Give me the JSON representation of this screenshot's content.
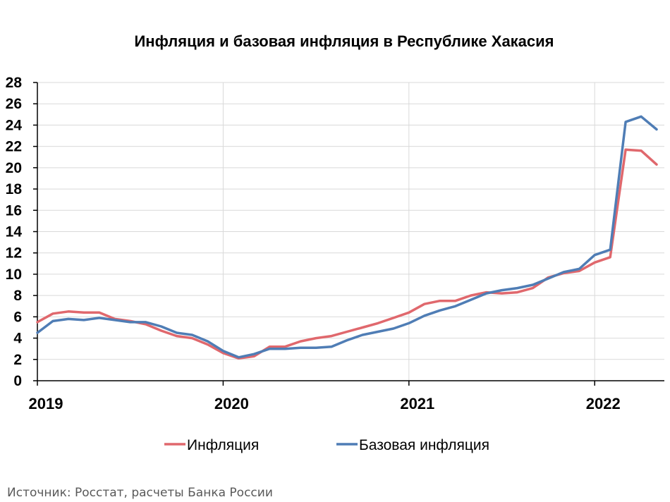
{
  "chart_data": {
    "type": "line",
    "title": "Инфляция и базовая инфляция в Республике Хакасия",
    "xlabel": "",
    "ylabel": "",
    "ylim": [
      0,
      28
    ],
    "yticks": [
      "0",
      "2",
      "4",
      "6",
      "8",
      "10",
      "12",
      "14",
      "16",
      "18",
      "20",
      "22",
      "24",
      "26",
      "28"
    ],
    "xticks": [
      "2019",
      "2020",
      "2021",
      "2022"
    ],
    "x": [
      "2019-01",
      "2019-02",
      "2019-03",
      "2019-04",
      "2019-05",
      "2019-06",
      "2019-07",
      "2019-08",
      "2019-09",
      "2019-10",
      "2019-11",
      "2019-12",
      "2020-01",
      "2020-02",
      "2020-03",
      "2020-04",
      "2020-05",
      "2020-06",
      "2020-07",
      "2020-08",
      "2020-09",
      "2020-10",
      "2020-11",
      "2020-12",
      "2021-01",
      "2021-02",
      "2021-03",
      "2021-04",
      "2021-05",
      "2021-06",
      "2021-07",
      "2021-08",
      "2021-09",
      "2021-10",
      "2021-11",
      "2021-12",
      "2022-01",
      "2022-02",
      "2022-03",
      "2022-04",
      "2022-05"
    ],
    "grid": true,
    "legend_position": "bottom",
    "series": [
      {
        "name": "Инфляция",
        "color": "#e0686d",
        "values": [
          5.5,
          6.3,
          6.5,
          6.4,
          6.4,
          5.8,
          5.6,
          5.3,
          4.7,
          4.2,
          4.0,
          3.4,
          2.6,
          2.1,
          2.3,
          3.2,
          3.2,
          3.7,
          4.0,
          4.2,
          4.6,
          5.0,
          5.4,
          5.9,
          6.4,
          7.2,
          7.5,
          7.5,
          8.0,
          8.3,
          8.2,
          8.3,
          8.7,
          9.7,
          10.1,
          10.3,
          11.1,
          11.6,
          21.7,
          21.6,
          20.3
        ]
      },
      {
        "name": "Базовая инфляция",
        "color": "#4f7db5",
        "values": [
          4.5,
          5.6,
          5.8,
          5.7,
          5.9,
          5.7,
          5.5,
          5.5,
          5.1,
          4.5,
          4.3,
          3.7,
          2.8,
          2.2,
          2.5,
          3.0,
          3.0,
          3.1,
          3.1,
          3.2,
          3.8,
          4.3,
          4.6,
          4.9,
          5.4,
          6.1,
          6.6,
          7.0,
          7.6,
          8.2,
          8.5,
          8.7,
          9.0,
          9.6,
          10.2,
          10.5,
          11.8,
          12.3,
          24.3,
          24.8,
          23.6
        ]
      }
    ]
  },
  "source_note": "Источник: Росстат, расчеты Банка России"
}
